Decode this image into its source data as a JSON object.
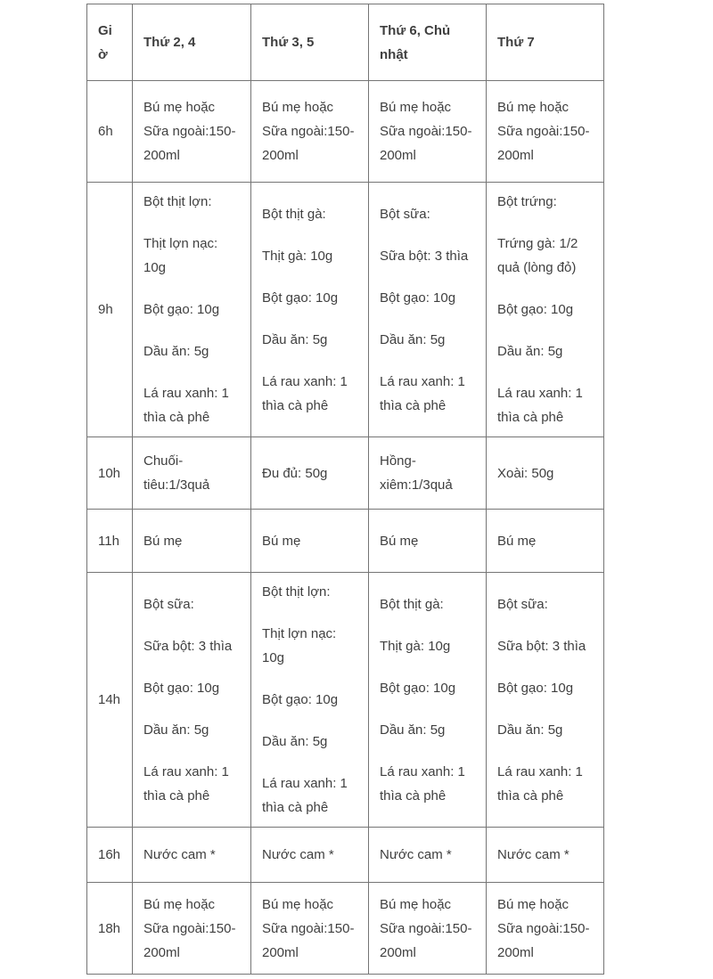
{
  "colors": {
    "text": "#3f3f3f",
    "border": "#757575",
    "background": "#ffffff"
  },
  "table": {
    "columns": [
      {
        "label": "Giờ"
      },
      {
        "label": "Thứ 2, 4"
      },
      {
        "label": "Thứ 3, 5"
      },
      {
        "label": "Thứ 6, Chủ nhật"
      },
      {
        "label": "Thứ 7"
      }
    ],
    "rows": [
      {
        "time": "6h",
        "cells": [
          [
            "Bú mẹ hoặc Sữa ngoài:150-200ml"
          ],
          [
            "Bú mẹ hoặc Sữa ngoài:150-200ml"
          ],
          [
            "Bú mẹ hoặc Sữa ngoài:150-200ml"
          ],
          [
            "Bú mẹ hoặc Sữa ngoài:150-200ml"
          ]
        ]
      },
      {
        "time": "9h",
        "cells": [
          [
            "Bột thịt lợn:",
            "Thịt lợn nạc: 10g",
            "Bột gạo: 10g",
            "Dầu ăn: 5g",
            "Lá rau xanh: 1 thìa cà phê"
          ],
          [
            "Bột thịt gà:",
            "Thịt gà: 10g",
            "Bột gạo: 10g",
            "Dầu ăn: 5g",
            "Lá rau xanh: 1 thìa cà phê"
          ],
          [
            "Bột sữa:",
            "Sữa bột: 3 thìa",
            "Bột gạo: 10g",
            "Dầu ăn: 5g",
            "Lá rau xanh: 1 thìa cà phê"
          ],
          [
            "Bột trứng:",
            "Trứng gà: 1/2 quả (lòng đỏ)",
            "Bột gạo: 10g",
            "Dầu ăn: 5g",
            "Lá rau xanh: 1 thìa cà phê"
          ]
        ]
      },
      {
        "time": "10h",
        "cells": [
          [
            "Chuối-tiêu:1/3quả"
          ],
          [
            "Đu đủ: 50g"
          ],
          [
            "Hồng-xiêm:1/3quả"
          ],
          [
            "Xoài: 50g"
          ]
        ]
      },
      {
        "time": "11h",
        "cells": [
          [
            "Bú mẹ"
          ],
          [
            "Bú mẹ"
          ],
          [
            "Bú mẹ"
          ],
          [
            "Bú mẹ"
          ]
        ]
      },
      {
        "time": "14h",
        "cells": [
          [
            "Bột sữa:",
            "Sữa bột: 3 thìa",
            "Bột gạo: 10g",
            "Dầu ăn: 5g",
            "Lá rau xanh: 1 thìa cà phê"
          ],
          [
            "Bột thịt lợn:",
            "Thịt lợn nạc: 10g",
            "Bột gạo: 10g",
            "Dầu ăn: 5g",
            "Lá rau xanh: 1 thìa cà phê"
          ],
          [
            "Bột thịt gà:",
            "Thịt gà: 10g",
            "Bột gạo: 10g",
            "Dầu ăn: 5g",
            "Lá rau xanh: 1 thìa cà phê"
          ],
          [
            "Bột sữa:",
            "Sữa bột: 3 thìa",
            "Bột gạo: 10g",
            "Dầu ăn: 5g",
            "Lá rau xanh: 1 thìa cà phê"
          ]
        ]
      },
      {
        "time": "16h",
        "cells": [
          [
            "Nước cam *"
          ],
          [
            "Nước cam *"
          ],
          [
            "Nước cam *"
          ],
          [
            "Nước cam *"
          ]
        ]
      },
      {
        "time": "18h",
        "cells": [
          [
            "Bú mẹ hoặc Sữa ngoài:150-200ml"
          ],
          [
            "Bú mẹ hoặc Sữa ngoài:150-200ml"
          ],
          [
            "Bú mẹ hoặc Sữa ngoài:150-200ml"
          ],
          [
            "Bú mẹ hoặc Sữa ngoài:150-200ml"
          ]
        ]
      }
    ]
  }
}
